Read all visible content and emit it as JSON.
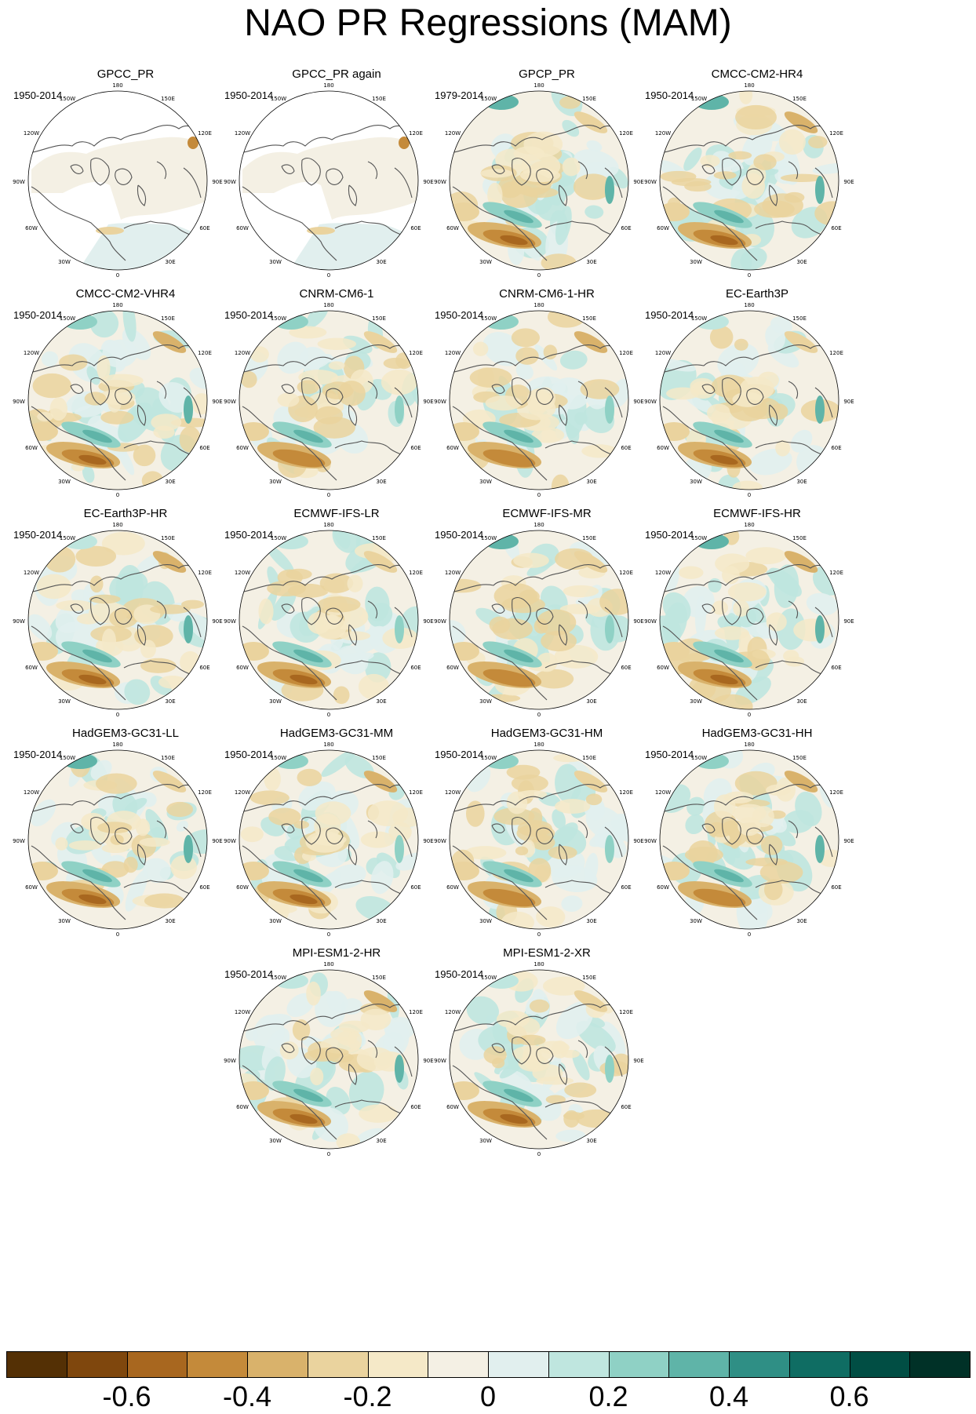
{
  "title": "NAO PR Regressions (MAM)",
  "panels": [
    {
      "title": "GPCC_PR",
      "period": "1950-2014",
      "masked": true
    },
    {
      "title": "GPCC_PR again",
      "period": "1950-2014",
      "masked": true
    },
    {
      "title": "GPCP_PR",
      "period": "1979-2014",
      "masked": false
    },
    {
      "title": "CMCC-CM2-HR4",
      "period": "1950-2014",
      "masked": false
    },
    {
      "title": "CMCC-CM2-VHR4",
      "period": "1950-2014",
      "masked": false
    },
    {
      "title": "CNRM-CM6-1",
      "period": "1950-2014",
      "masked": false
    },
    {
      "title": "CNRM-CM6-1-HR",
      "period": "1950-2014",
      "masked": false
    },
    {
      "title": "EC-Earth3P",
      "period": "1950-2014",
      "masked": false
    },
    {
      "title": "EC-Earth3P-HR",
      "period": "1950-2014",
      "masked": false
    },
    {
      "title": "ECMWF-IFS-LR",
      "period": "1950-2014",
      "masked": false
    },
    {
      "title": "ECMWF-IFS-MR",
      "period": "1950-2014",
      "masked": false
    },
    {
      "title": "ECMWF-IFS-HR",
      "period": "1950-2014",
      "masked": false
    },
    {
      "title": "HadGEM3-GC31-LL",
      "period": "1950-2014",
      "masked": false
    },
    {
      "title": "HadGEM3-GC31-MM",
      "period": "1950-2014",
      "masked": false
    },
    {
      "title": "HadGEM3-GC31-HM",
      "period": "1950-2014",
      "masked": false
    },
    {
      "title": "HadGEM3-GC31-HH",
      "period": "1950-2014",
      "masked": false
    },
    {
      "title": "MPI-ESM1-2-HR",
      "period": "1950-2014",
      "masked": false
    },
    {
      "title": "MPI-ESM1-2-XR",
      "period": "1950-2014",
      "masked": false
    }
  ],
  "longitude_labels": {
    "top": "180",
    "top_left": "150W",
    "top_right": "150E",
    "upper_left": "120W",
    "upper_right": "120E",
    "left": "90W",
    "right": "90E",
    "lower_left": "60W",
    "lower_right": "60E",
    "bottom_left": "30W",
    "bottom_right": "30E",
    "bottom": "0"
  },
  "colorbar": {
    "colors": [
      "#543005",
      "#7f470d",
      "#a8671f",
      "#c48a3a",
      "#d9b26b",
      "#ead39e",
      "#f5e9c8",
      "#f4f0e4",
      "#e1efee",
      "#bfe6df",
      "#8fd1c5",
      "#5fb4a8",
      "#2f8f85",
      "#0f6d63",
      "#014e44",
      "#003127"
    ],
    "tick_labels": [
      "-0.6",
      "-0.4",
      "-0.2",
      "0",
      "0.2",
      "0.4",
      "0.6"
    ],
    "tick_values": [
      -0.6,
      -0.4,
      -0.2,
      0,
      0.2,
      0.4,
      0.6
    ],
    "range": [
      -0.8,
      0.8
    ]
  },
  "colors": {
    "coast": "#555555",
    "dry": "#c48a3a",
    "wet": "#2f8f85",
    "neutral": "#f4f0e4"
  }
}
